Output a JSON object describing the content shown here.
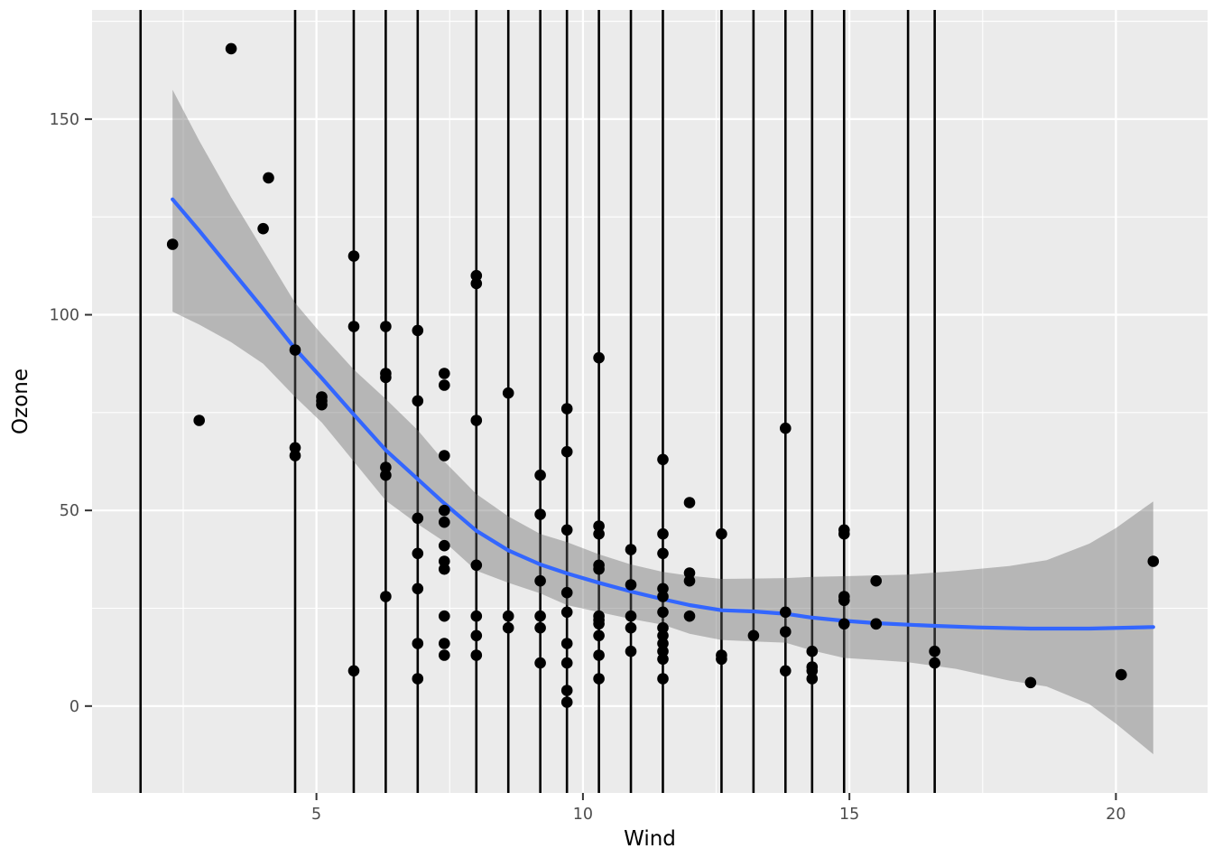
{
  "chart_data": {
    "type": "scatter",
    "title": "",
    "xlabel": "Wind",
    "ylabel": "Ozone",
    "x_ticks": [
      5,
      10,
      15,
      20
    ],
    "y_ticks": [
      0,
      50,
      100,
      150
    ],
    "x_minor_ticks": [
      2.5,
      7.5,
      12.5,
      17.5
    ],
    "y_minor_ticks": [
      25,
      75,
      125,
      175
    ],
    "xlim": [
      0.79,
      21.72
    ],
    "ylim": [
      -22.2,
      177.9
    ],
    "grid": true,
    "legend": "none",
    "colors": {
      "panel_background": "#EBEBEB",
      "gridline": "#FFFFFF",
      "point": "#000000",
      "vline": "#000000",
      "smooth_line": "#3366FF",
      "confidence_band": "rgba(102,102,102,0.4)",
      "tick_text": "#4D4D4D",
      "axis_title": "#000000",
      "tick_mark": "#333333"
    },
    "vlines": [
      1.7,
      4.6,
      5.7,
      6.3,
      6.9,
      8.0,
      8.6,
      9.2,
      9.7,
      10.3,
      10.9,
      11.5,
      12.6,
      13.2,
      13.8,
      14.3,
      14.9,
      16.1,
      16.6
    ],
    "points": [
      [
        2.3,
        118
      ],
      [
        2.8,
        73
      ],
      [
        3.4,
        168
      ],
      [
        4.0,
        122
      ],
      [
        4.1,
        135
      ],
      [
        4.6,
        91
      ],
      [
        4.6,
        66
      ],
      [
        4.6,
        64
      ],
      [
        5.1,
        79
      ],
      [
        5.1,
        78
      ],
      [
        5.1,
        77
      ],
      [
        5.7,
        115
      ],
      [
        5.7,
        97
      ],
      [
        5.7,
        9
      ],
      [
        6.3,
        97
      ],
      [
        6.3,
        85
      ],
      [
        6.3,
        84
      ],
      [
        6.3,
        61
      ],
      [
        6.3,
        59
      ],
      [
        6.3,
        28
      ],
      [
        6.9,
        96
      ],
      [
        6.9,
        78
      ],
      [
        6.9,
        48
      ],
      [
        6.9,
        39
      ],
      [
        6.9,
        30
      ],
      [
        6.9,
        16
      ],
      [
        6.9,
        7
      ],
      [
        7.4,
        85
      ],
      [
        7.4,
        82
      ],
      [
        7.4,
        64
      ],
      [
        7.4,
        50
      ],
      [
        7.4,
        47
      ],
      [
        7.4,
        41
      ],
      [
        7.4,
        37
      ],
      [
        7.4,
        35
      ],
      [
        7.4,
        23
      ],
      [
        7.4,
        16
      ],
      [
        7.4,
        13
      ],
      [
        8.0,
        110
      ],
      [
        8.0,
        108
      ],
      [
        8.0,
        73
      ],
      [
        8.0,
        36
      ],
      [
        8.0,
        23
      ],
      [
        8.0,
        18
      ],
      [
        8.0,
        13
      ],
      [
        8.6,
        80
      ],
      [
        8.6,
        23
      ],
      [
        8.6,
        20
      ],
      [
        9.2,
        59
      ],
      [
        9.2,
        49
      ],
      [
        9.2,
        32
      ],
      [
        9.2,
        23
      ],
      [
        9.2,
        20
      ],
      [
        9.2,
        11
      ],
      [
        9.7,
        76
      ],
      [
        9.7,
        65
      ],
      [
        9.7,
        45
      ],
      [
        9.7,
        29
      ],
      [
        9.7,
        24
      ],
      [
        9.7,
        16
      ],
      [
        9.7,
        11
      ],
      [
        9.7,
        4
      ],
      [
        9.7,
        1
      ],
      [
        10.3,
        89
      ],
      [
        10.3,
        46
      ],
      [
        10.3,
        44
      ],
      [
        10.3,
        36
      ],
      [
        10.3,
        35
      ],
      [
        10.3,
        23
      ],
      [
        10.3,
        22
      ],
      [
        10.3,
        21
      ],
      [
        10.3,
        18
      ],
      [
        10.3,
        13
      ],
      [
        10.3,
        7
      ],
      [
        10.9,
        40
      ],
      [
        10.9,
        31
      ],
      [
        10.9,
        23
      ],
      [
        10.9,
        20
      ],
      [
        10.9,
        14
      ],
      [
        11.5,
        63
      ],
      [
        11.5,
        44
      ],
      [
        11.5,
        39
      ],
      [
        11.5,
        30
      ],
      [
        11.5,
        28
      ],
      [
        11.5,
        24
      ],
      [
        11.5,
        20
      ],
      [
        11.5,
        18
      ],
      [
        11.5,
        16
      ],
      [
        11.5,
        14
      ],
      [
        11.5,
        12
      ],
      [
        11.5,
        7
      ],
      [
        12.0,
        52
      ],
      [
        12.0,
        34
      ],
      [
        12.0,
        32
      ],
      [
        12.0,
        23
      ],
      [
        12.6,
        44
      ],
      [
        12.6,
        13
      ],
      [
        12.6,
        12
      ],
      [
        13.2,
        18
      ],
      [
        13.8,
        71
      ],
      [
        13.8,
        24
      ],
      [
        13.8,
        19
      ],
      [
        13.8,
        9
      ],
      [
        14.3,
        14
      ],
      [
        14.3,
        10
      ],
      [
        14.3,
        9
      ],
      [
        14.3,
        7
      ],
      [
        14.9,
        45
      ],
      [
        14.9,
        44
      ],
      [
        14.9,
        28
      ],
      [
        14.9,
        27
      ],
      [
        14.9,
        21
      ],
      [
        15.5,
        32
      ],
      [
        15.5,
        21
      ],
      [
        15.5,
        21
      ],
      [
        16.6,
        14
      ],
      [
        16.6,
        11
      ],
      [
        18.4,
        6
      ],
      [
        20.1,
        8
      ],
      [
        20.7,
        37
      ]
    ],
    "smooth_line": [
      [
        2.3,
        129.5
      ],
      [
        2.8,
        121.5
      ],
      [
        3.4,
        111.5
      ],
      [
        4.0,
        101.5
      ],
      [
        4.6,
        91.3
      ],
      [
        5.1,
        83.8
      ],
      [
        5.7,
        74.5
      ],
      [
        6.3,
        65.4
      ],
      [
        6.9,
        58.0
      ],
      [
        7.4,
        51.8
      ],
      [
        8.0,
        44.8
      ],
      [
        8.6,
        39.8
      ],
      [
        9.2,
        36.2
      ],
      [
        9.7,
        33.9
      ],
      [
        10.3,
        31.5
      ],
      [
        10.9,
        29.3
      ],
      [
        11.5,
        27.3
      ],
      [
        12.0,
        25.8
      ],
      [
        12.6,
        24.5
      ],
      [
        13.2,
        24.2
      ],
      [
        13.8,
        23.6
      ],
      [
        14.3,
        22.6
      ],
      [
        14.9,
        21.8
      ],
      [
        15.5,
        21.2
      ],
      [
        16.1,
        20.8
      ],
      [
        16.6,
        20.5
      ],
      [
        17.4,
        20.1
      ],
      [
        18.4,
        19.8
      ],
      [
        19.5,
        19.8
      ],
      [
        20.7,
        20.2
      ]
    ],
    "confidence_band": [
      [
        2.3,
        100.8,
        157.5
      ],
      [
        2.8,
        97.5,
        144.5
      ],
      [
        3.4,
        93.0,
        130.0
      ],
      [
        4.0,
        87.5,
        116.5
      ],
      [
        4.6,
        79.0,
        103.0
      ],
      [
        5.1,
        72.5,
        95.0
      ],
      [
        5.7,
        62.5,
        86.0
      ],
      [
        6.3,
        52.5,
        78.5
      ],
      [
        6.9,
        46.5,
        70.5
      ],
      [
        7.4,
        42.0,
        62.5
      ],
      [
        8.0,
        34.6,
        54.2
      ],
      [
        8.6,
        31.5,
        48.5
      ],
      [
        9.2,
        28.8,
        44.0
      ],
      [
        9.7,
        25.8,
        41.9
      ],
      [
        10.3,
        24.0,
        38.8
      ],
      [
        10.9,
        22.3,
        36.2
      ],
      [
        11.5,
        20.8,
        34.3
      ],
      [
        12.0,
        18.5,
        33.3
      ],
      [
        12.6,
        16.9,
        32.5
      ],
      [
        13.2,
        16.5,
        32.6
      ],
      [
        13.8,
        16.2,
        32.7
      ],
      [
        14.3,
        14.2,
        33.0
      ],
      [
        14.9,
        12.3,
        33.2
      ],
      [
        15.5,
        11.8,
        33.4
      ],
      [
        16.1,
        11.2,
        33.6
      ],
      [
        17.0,
        9.5,
        34.5
      ],
      [
        18.0,
        6.5,
        35.8
      ],
      [
        18.7,
        5.0,
        37.3
      ],
      [
        19.5,
        0.5,
        41.5
      ],
      [
        20.0,
        -4.5,
        45.5
      ],
      [
        20.7,
        -12.3,
        52.3
      ]
    ]
  }
}
